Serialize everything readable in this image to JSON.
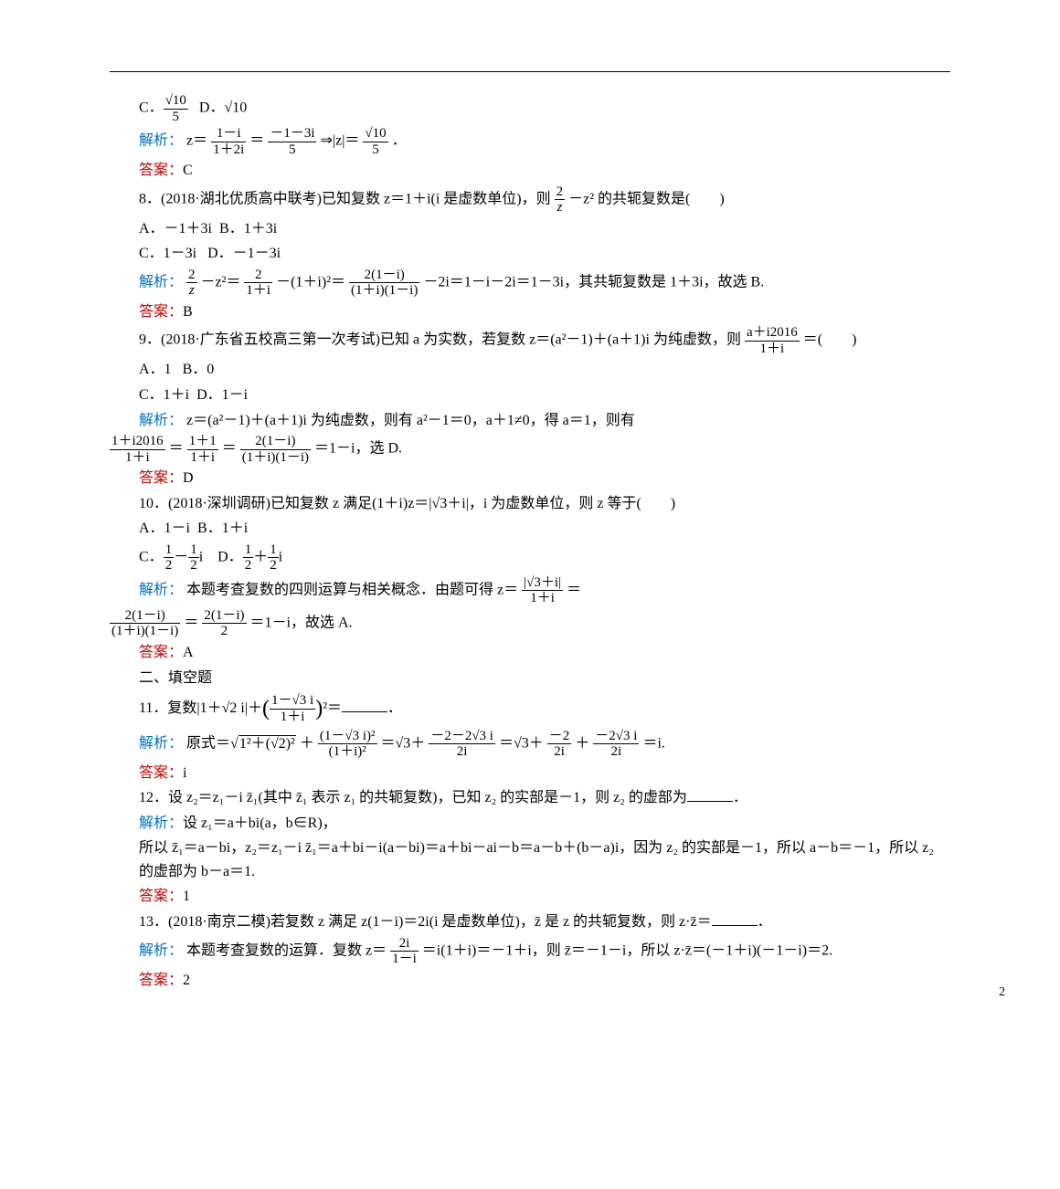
{
  "q7": {
    "optC_prefix": "C．",
    "optC_num": "√10",
    "optC_den": "5",
    "optD": "D．√10",
    "analysis_label": "解析：",
    "analysis_text1": "z＝",
    "f1_num": "1－i",
    "f1_den": "1＋2i",
    "analysis_text2": "＝",
    "f2_num": "－1－3i",
    "f2_den": "5",
    "analysis_text3": "⇒|z|＝",
    "f3_num": "√10",
    "f3_den": "5",
    "analysis_text4": "．",
    "answer_label": "答案：",
    "answer": "C"
  },
  "q8": {
    "stem1": "8．(2018·湖北优质高中联考)已知复数 z＝1＋i(i 是虚数单位)，则",
    "stem_f_num": "2",
    "stem_f_den": "z",
    "stem2": "－z² 的共轭复数是(　　)",
    "optA": "A．－1＋3i",
    "optB": "B．1＋3i",
    "optC": "C．1－3i",
    "optD": "D．－1－3i",
    "analysis_label": "解析：",
    "a_f1_num": "2",
    "a_f1_den": "z",
    "a_t1": "－z²＝",
    "a_f2_num": "2",
    "a_f2_den": "1＋i",
    "a_t2": "－(1＋i)²＝",
    "a_f3_num": "2(1－i)",
    "a_f3_den": "(1＋i)(1－i)",
    "a_t3": "－2i＝1－i－2i＝1－3i，其共轭复数是 1＋3i，故选 B.",
    "answer_label": "答案：",
    "answer": "B"
  },
  "q9": {
    "stem1": "9．(2018·广东省五校高三第一次考试)已知 a 为实数，若复数 z＝(a²－1)＋(a＋1)i 为纯虚数，则",
    "f_num": "a＋i2016",
    "f_den": "1＋i",
    "stem2": "＝(　　)",
    "optA": "A．1",
    "optB": "B．0",
    "optC": "C．1＋i",
    "optD": "D．1－i",
    "analysis_label": "解析：",
    "a_t0": "z＝(a²－1)＋(a＋1)i 为纯虚数，则有 a²－1＝0，a＋1≠0，得 a＝1，则有",
    "a_f1_num": "1＋i2016",
    "a_f1_den": "1＋i",
    "a_t1": "＝",
    "a_f2_num": "1＋1",
    "a_f2_den": "1＋i",
    "a_t2": "＝",
    "a_f3_num": "2(1－i)",
    "a_f3_den": "(1＋i)(1－i)",
    "a_t3": "＝1－i，选 D.",
    "answer_label": "答案：",
    "answer": "D"
  },
  "q10": {
    "stem": "10．(2018·深圳调研)已知复数 z 满足(1＋i)z＝|√3＋i|，i 为虚数单位，则 z 等于(　　)",
    "optA": "A．1－i",
    "optB": "B．1＋i",
    "optC_pre": "C．",
    "optC_f1_num": "1",
    "optC_f1_den": "2",
    "optC_mid": "－",
    "optC_f2_num": "1",
    "optC_f2_den": "2",
    "optC_post": "i",
    "optD_pre": "D．",
    "optD_f1_num": "1",
    "optD_f1_den": "2",
    "optD_mid": "＋",
    "optD_f2_num": "1",
    "optD_f2_den": "2",
    "optD_post": "i",
    "analysis_label": "解析：",
    "a_t0": "本题考查复数的四则运算与相关概念．由题可得 z＝",
    "a_f1_num": "|√3＋i|",
    "a_f1_den": "1＋i",
    "a_t1": "＝",
    "a_f2_num": "2(1－i)",
    "a_f2_den": "(1＋i)(1－i)",
    "a_t2": "＝",
    "a_f3_num": "2(1－i)",
    "a_f3_den": "2",
    "a_t3": "＝1－i，故选 A.",
    "answer_label": "答案：",
    "answer": "A"
  },
  "section2": "二、填空题",
  "q11": {
    "stem_pre": "11．复数|1＋√2 i|＋",
    "f_num": "1－√3 i",
    "f_den": "1＋i",
    "stem_post": "²＝",
    "blank_end": "．",
    "analysis_label": "解析：",
    "a_t0": "原式＝",
    "a_sqrt": "1²＋(√2)²",
    "a_t1": "＋",
    "a_f1_num": "(1－√3 i)²",
    "a_f1_den": "(1＋i)²",
    "a_t2": "＝√3＋",
    "a_f2_num": "－2－2√3 i",
    "a_f2_den": "2i",
    "a_t3": "＝√3＋",
    "a_f3_num": "－2",
    "a_f3_den": "2i",
    "a_t4": "＋",
    "a_f4_num": "－2√3 i",
    "a_f4_den": "2i",
    "a_t5": "＝i.",
    "answer_label": "答案：",
    "answer": "i"
  },
  "q12": {
    "stem": "12．设 z₂＝z₁－i z̄₁(其中 z̄₁ 表示 z₁ 的共轭复数)，已知 z₂ 的实部是－1，则 z₂ 的虚部为",
    "stem_end": "．",
    "analysis_label": "解析：",
    "a_l1": "设 z₁＝a＋bi(a，b∈R)，",
    "a_l2": "所以 z̄₁＝a－bi，z₂＝z₁－i z̄₁＝a＋bi－i(a－bi)＝a＋bi－ai－b＝a－b＋(b－a)i，因为 z₂ 的实部是－1，所以 a－b＝－1，所以 z₂ 的虚部为 b－a＝1.",
    "answer_label": "答案：",
    "answer": "1"
  },
  "q13": {
    "stem": "13．(2018·南京二模)若复数 z 满足 z(1－i)＝2i(i 是虚数单位)，z̄ 是 z 的共轭复数，则 z·z̄＝",
    "stem_end": "．",
    "analysis_label": "解析：",
    "a_t0": "本题考查复数的运算．复数 z＝",
    "a_f_num": "2i",
    "a_f_den": "1－i",
    "a_t1": "＝i(1＋i)＝－1＋i，则 z̄＝－1－i，所以 z·z̄＝(－1＋i)(－1－i)＝2.",
    "answer_label": "答案：",
    "answer": "2"
  },
  "page": "2"
}
